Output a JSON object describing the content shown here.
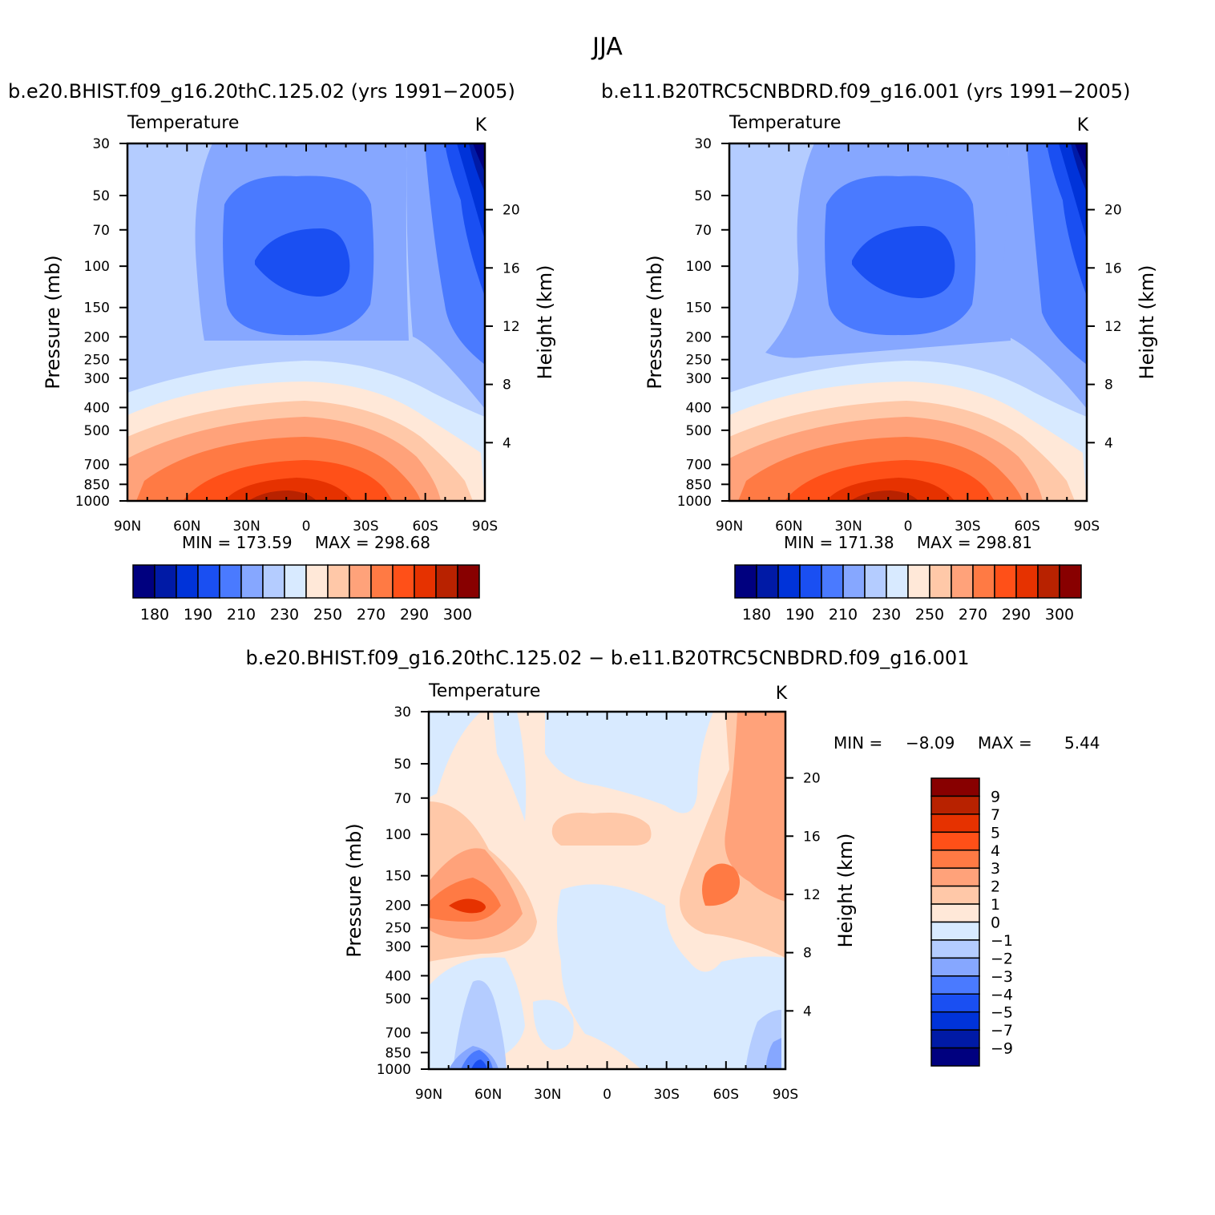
{
  "figure_title": "JJA",
  "chart_data": [
    {
      "type": "contour",
      "id": "left",
      "title_left": "b.e20.BHIST.f09_g16.20thC.125.02 (yrs 1991−2005)",
      "variable": "Temperature",
      "units": "K",
      "ylabel": "Pressure (mb)",
      "y2label": "Height (km)",
      "x_ticks": [
        "90N",
        "60N",
        "30N",
        "0",
        "30S",
        "60S",
        "90S"
      ],
      "y_ticks": [
        "30",
        "50",
        "70",
        "100",
        "150",
        "200",
        "250",
        "300",
        "400",
        "500",
        "700",
        "850",
        "1000"
      ],
      "y_tick_values": [
        30,
        50,
        70,
        100,
        150,
        200,
        250,
        300,
        400,
        500,
        700,
        850,
        1000
      ],
      "y2_ticks": [
        "20",
        "16",
        "12",
        "8",
        "4"
      ],
      "y2_tick_values": [
        20,
        16,
        12,
        8,
        4
      ],
      "min_label": "MIN = 173.59",
      "max_label": "MAX = 298.68",
      "min": 173.59,
      "max": 298.68,
      "colorbar_labels": [
        "180",
        "190",
        "210",
        "230",
        "250",
        "270",
        "290",
        "300"
      ],
      "colorbar_colors": [
        "#00007f",
        "#001aa6",
        "#0033d9",
        "#1a4ff2",
        "#4a7aff",
        "#86a7ff",
        "#b4ccff",
        "#d8eaff",
        "#ffe8d8",
        "#ffc8a8",
        "#ffa27a",
        "#ff7a44",
        "#ff5018",
        "#e63200",
        "#b82200",
        "#880000"
      ]
    },
    {
      "type": "contour",
      "id": "right",
      "title_left": "b.e11.B20TRC5CNBDRD.f09_g16.001 (yrs 1991−2005)",
      "variable": "Temperature",
      "units": "K",
      "ylabel": "Pressure (mb)",
      "y2label": "Height (km)",
      "x_ticks": [
        "90N",
        "60N",
        "30N",
        "0",
        "30S",
        "60S",
        "90S"
      ],
      "y_ticks": [
        "30",
        "50",
        "70",
        "100",
        "150",
        "200",
        "250",
        "300",
        "400",
        "500",
        "700",
        "850",
        "1000"
      ],
      "y_tick_values": [
        30,
        50,
        70,
        100,
        150,
        200,
        250,
        300,
        400,
        500,
        700,
        850,
        1000
      ],
      "y2_ticks": [
        "20",
        "16",
        "12",
        "8",
        "4"
      ],
      "y2_tick_values": [
        20,
        16,
        12,
        8,
        4
      ],
      "min_label": "MIN = 171.38",
      "max_label": "MAX = 298.81",
      "min": 171.38,
      "max": 298.81,
      "colorbar_labels": [
        "180",
        "190",
        "210",
        "230",
        "250",
        "270",
        "290",
        "300"
      ],
      "colorbar_colors": [
        "#00007f",
        "#001aa6",
        "#0033d9",
        "#1a4ff2",
        "#4a7aff",
        "#86a7ff",
        "#b4ccff",
        "#d8eaff",
        "#ffe8d8",
        "#ffc8a8",
        "#ffa27a",
        "#ff7a44",
        "#ff5018",
        "#e63200",
        "#b82200",
        "#880000"
      ]
    },
    {
      "type": "contour",
      "id": "diff",
      "title": "b.e20.BHIST.f09_g16.20thC.125.02 − b.e11.B20TRC5CNBDRD.f09_g16.001",
      "variable": "Temperature",
      "units": "K",
      "ylabel": "Pressure (mb)",
      "y2label": "Height (km)",
      "x_ticks": [
        "90N",
        "60N",
        "30N",
        "0",
        "30S",
        "60S",
        "90S"
      ],
      "y_ticks": [
        "30",
        "50",
        "70",
        "100",
        "150",
        "200",
        "250",
        "300",
        "400",
        "500",
        "700",
        "850",
        "1000"
      ],
      "y_tick_values": [
        30,
        50,
        70,
        100,
        150,
        200,
        250,
        300,
        400,
        500,
        700,
        850,
        1000
      ],
      "y2_ticks": [
        "20",
        "16",
        "12",
        "8",
        "4"
      ],
      "y2_tick_values": [
        20,
        16,
        12,
        8,
        4
      ],
      "min_label": "MIN =",
      "min_value": "−8.09",
      "max_label": "MAX =",
      "max_value": "5.44",
      "min": -8.09,
      "max": 5.44,
      "colorbar_labels": [
        "9",
        "7",
        "5",
        "4",
        "3",
        "2",
        "1",
        "0",
        "−1",
        "−2",
        "−3",
        "−4",
        "−5",
        "−7",
        "−9"
      ],
      "colorbar_colors": [
        "#880000",
        "#b82200",
        "#e63200",
        "#ff5018",
        "#ff7a44",
        "#ffa27a",
        "#ffc8a8",
        "#ffe8d8",
        "#d8eaff",
        "#b4ccff",
        "#86a7ff",
        "#4a7aff",
        "#1a4ff2",
        "#0033d9",
        "#001aa6",
        "#00007f"
      ]
    }
  ]
}
